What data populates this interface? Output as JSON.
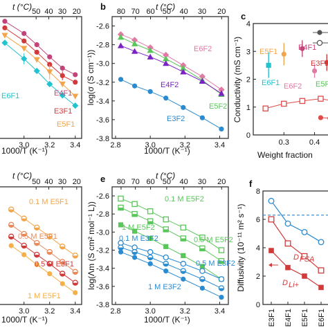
{
  "panel_letters": [
    "b",
    "c",
    "e",
    "f"
  ],
  "chart_data": [
    {
      "id": "a",
      "type": "scatter",
      "xlabel": "1000/T (K⁻¹)",
      "top_label": "t (°C)",
      "x_ticks": [
        "3.0",
        "3.2",
        "3.4"
      ],
      "top_ticks": [
        "50",
        "40",
        "30",
        "20"
      ],
      "series": [
        {
          "name": "E4F1",
          "color": "#c2457a",
          "marker": "circle",
          "x": [
            2.85,
            3.0,
            3.1,
            3.2,
            3.3,
            3.4
          ],
          "y": [
            -2.55,
            -2.68,
            -2.8,
            -2.93,
            -3.05,
            -3.12
          ]
        },
        {
          "name": "E3F1",
          "color": "#d13a3a",
          "marker": "circle",
          "x": [
            2.85,
            3.0,
            3.1,
            3.2,
            3.3,
            3.4
          ],
          "y": [
            -2.62,
            -2.76,
            -2.88,
            -3.01,
            -3.13,
            -3.2
          ]
        },
        {
          "name": "E5F1",
          "color": "#f2a54a",
          "marker": "triangle-down",
          "x": [
            2.85,
            3.0,
            3.1,
            3.2,
            3.3,
            3.4
          ],
          "y": [
            -2.7,
            -2.84,
            -2.96,
            -3.09,
            -3.22,
            -3.35
          ]
        },
        {
          "name": "E6F1",
          "color": "#21c3cf",
          "marker": "diamond",
          "x": [
            2.85,
            3.0,
            3.1,
            3.2,
            3.3,
            3.4
          ],
          "y": [
            -2.78,
            -2.95,
            -3.08,
            -3.22,
            -3.34,
            -3.45
          ]
        }
      ]
    },
    {
      "id": "b",
      "type": "line",
      "xlabel": "1000/T (K⁻¹)",
      "ylabel": "log(σ (S cm⁻¹))",
      "top_label": "t (°C)",
      "xlim": [
        2.78,
        3.45
      ],
      "ylim": [
        -3.8,
        -2.5
      ],
      "x_ticks": [
        "2.8",
        "3.0",
        "3.2",
        "3.4"
      ],
      "y_ticks": [
        "-2.6",
        "-2.8",
        "-3.0",
        "-3.2",
        "-3.4",
        "-3.6",
        "-3.8"
      ],
      "top_ticks": [
        "80",
        "70",
        "60",
        "50",
        "40",
        "30",
        "20"
      ],
      "series": [
        {
          "name": "E6F2",
          "color": "#e07aa5",
          "marker": "diamond",
          "x": [
            2.83,
            2.91,
            3.0,
            3.09,
            3.19,
            3.3,
            3.41
          ],
          "y": [
            -2.69,
            -2.75,
            -2.83,
            -2.91,
            -3.02,
            -3.14,
            -3.28
          ]
        },
        {
          "name": "E5F2",
          "color": "#59c659",
          "marker": "triangle",
          "x": [
            2.83,
            2.91,
            3.0,
            3.09,
            3.19,
            3.3,
            3.41
          ],
          "y": [
            -2.72,
            -2.79,
            -2.86,
            -2.95,
            -3.05,
            -3.18,
            -3.33
          ]
        },
        {
          "name": "E4F2",
          "color": "#7a22c2",
          "marker": "triangle",
          "x": [
            2.83,
            2.91,
            3.0,
            3.09,
            3.19,
            3.3,
            3.41
          ],
          "y": [
            -2.81,
            -2.87,
            -2.93,
            -3.0,
            -3.09,
            -3.19,
            -3.32
          ]
        },
        {
          "name": "E3F2",
          "color": "#2a8bd1",
          "marker": "circle",
          "x": [
            2.83,
            2.91,
            3.0,
            3.09,
            3.19,
            3.3,
            3.41
          ],
          "y": [
            -3.17,
            -3.24,
            -3.3,
            -3.37,
            -3.47,
            -3.58,
            -3.7
          ]
        }
      ]
    },
    {
      "id": "c",
      "type": "scatter",
      "xlabel": "Weight fraction",
      "ylabel": "Conductivity (mS cm⁻¹)",
      "xlim": [
        0.2,
        0.48
      ],
      "ylim": [
        0,
        4
      ],
      "x_ticks": [
        "0.3",
        "0.4"
      ],
      "y_ticks": [
        "0",
        "1",
        "2",
        "3",
        "4"
      ],
      "series": [
        {
          "name": "E5F1",
          "color": "#f2a54a",
          "marker": "circle",
          "x": [
            0.3
          ],
          "y": [
            2.9
          ],
          "err": [
            0.4
          ]
        },
        {
          "name": "E6F1",
          "color": "#21c3cf",
          "marker": "square",
          "x": [
            0.25
          ],
          "y": [
            2.5
          ],
          "err": [
            0.45
          ]
        },
        {
          "name": "E4F1",
          "color": "#c2457a",
          "marker": "circle",
          "x": [
            0.36
          ],
          "y": [
            3.1
          ],
          "err": [
            0.3
          ]
        },
        {
          "name": "E6F2",
          "color": "#e07aa5",
          "marker": "circle",
          "x": [
            0.4
          ],
          "y": [
            2.3
          ],
          "err": [
            0.25
          ]
        },
        {
          "name": "E3F1",
          "color": "#d13a3a",
          "marker": "circle",
          "x": [
            0.44
          ],
          "y": [
            2.6
          ],
          "err": [
            0.3
          ]
        },
        {
          "name": "E5F2",
          "color": "#59c659",
          "marker": "circle",
          "x": [
            0.47
          ],
          "y": [
            2.4
          ],
          "err": [
            0.2
          ]
        },
        {
          "name": "upper-open",
          "color": "#e04a4a",
          "marker": "open-square",
          "x": [
            0.24,
            0.3,
            0.36,
            0.42,
            0.47
          ],
          "y": [
            0.95,
            1.12,
            1.22,
            1.3,
            1.2
          ]
        },
        {
          "name": "lower-filled",
          "color": "#e04a4a",
          "marker": "circle",
          "x": [
            0.42,
            0.45,
            0.48
          ],
          "y": [
            0.62,
            0.6,
            0.58
          ]
        }
      ]
    },
    {
      "id": "d",
      "type": "scatter",
      "xlabel": "1000/T (K⁻¹)",
      "top_label": "t (°C)",
      "x_ticks": [
        "3.0",
        "3.2",
        "3.4"
      ],
      "top_ticks": [
        "50",
        "40",
        "30",
        "20"
      ],
      "series": [
        {
          "name": "0.1 M E5F1",
          "color": "#f2a54a",
          "marker": "half",
          "x": [
            2.9,
            3.0,
            3.1,
            3.2,
            3.3,
            3.4
          ],
          "y": [
            -2.75,
            -2.85,
            -2.95,
            -3.05,
            -3.16,
            -3.26
          ]
        },
        {
          "name": "0.5 M E5F1",
          "color": "#e88a5a",
          "marker": "half",
          "x": [
            2.9,
            3.0,
            3.1,
            3.2,
            3.3,
            3.4
          ],
          "y": [
            -2.92,
            -3.02,
            -3.12,
            -3.22,
            -3.33,
            -3.44
          ]
        },
        {
          "name": "0.5 M E3F1",
          "color": "#d13a3a",
          "marker": "half",
          "x": [
            2.9,
            3.0,
            3.1,
            3.2,
            3.3,
            3.4
          ],
          "y": [
            -3.05,
            -3.15,
            -3.25,
            -3.35,
            -3.46,
            -3.56
          ]
        },
        {
          "name": "1 M E5F1",
          "color": "#f5b04a",
          "marker": "circle",
          "x": [
            2.9,
            3.0,
            3.1,
            3.2,
            3.3,
            3.4
          ],
          "y": [
            -3.15,
            -3.25,
            -3.36,
            -3.46,
            -3.57,
            -3.67
          ]
        }
      ]
    },
    {
      "id": "e",
      "type": "line",
      "xlabel": "1000/T (K⁻¹)",
      "ylabel": "log(Λ_m (S cm² mol⁻¹ L))",
      "top_label": "t (°C)",
      "xlim": [
        2.78,
        3.45
      ],
      "ylim": [
        -3.8,
        -2.5
      ],
      "x_ticks": [
        "2.8",
        "3.0",
        "3.2",
        "3.4"
      ],
      "y_ticks": [
        "-2.6",
        "-2.8",
        "-3.0",
        "-3.2",
        "-3.4",
        "-3.6",
        "-3.8"
      ],
      "top_ticks": [
        "80",
        "70",
        "60",
        "50",
        "40",
        "30",
        "20"
      ],
      "series": [
        {
          "name": "0.1 M E5F2",
          "color": "#59c659",
          "marker": "open-square",
          "x": [
            2.83,
            2.91,
            3.0,
            3.09,
            3.19,
            3.3,
            3.41
          ],
          "y": [
            -2.63,
            -2.69,
            -2.77,
            -2.86,
            -2.95,
            -3.06,
            -3.2
          ]
        },
        {
          "name": "0.5 M E5F2",
          "color": "#59c659",
          "marker": "half-square",
          "x": [
            2.83,
            2.91,
            3.0,
            3.09,
            3.19,
            3.3,
            3.41
          ],
          "y": [
            -2.73,
            -2.8,
            -2.88,
            -2.97,
            -3.07,
            -3.18,
            -3.32
          ]
        },
        {
          "name": "1 M E5F2",
          "color": "#59c659",
          "marker": "square",
          "x": [
            2.83,
            2.91,
            3.0,
            3.09,
            3.19,
            3.3,
            3.41
          ],
          "y": [
            -2.92,
            -2.99,
            -3.07,
            -3.16,
            -3.26,
            -3.38,
            -3.52
          ]
        },
        {
          "name": "0.1 M E3F2",
          "color": "#2a8bd1",
          "marker": "open-circle",
          "x": [
            2.83,
            2.91,
            3.0,
            3.09,
            3.19,
            3.3,
            3.41
          ],
          "y": [
            -3.12,
            -3.17,
            -3.22,
            -3.28,
            -3.35,
            -3.43,
            -3.52
          ]
        },
        {
          "name": "0.5 M E3F2",
          "color": "#2a8bd1",
          "marker": "half",
          "x": [
            2.83,
            2.91,
            3.0,
            3.09,
            3.19,
            3.3,
            3.41
          ],
          "y": [
            -3.17,
            -3.22,
            -3.28,
            -3.35,
            -3.43,
            -3.52,
            -3.62
          ]
        },
        {
          "name": "1 M E3F2",
          "color": "#2a8bd1",
          "marker": "circle",
          "x": [
            2.83,
            2.91,
            3.0,
            3.09,
            3.19,
            3.3,
            3.41
          ],
          "y": [
            -3.22,
            -3.28,
            -3.35,
            -3.43,
            -3.52,
            -3.62,
            -3.72
          ]
        }
      ]
    },
    {
      "id": "f",
      "type": "line",
      "ylabel": "Diffusivity (10⁻¹¹ m² s⁻¹)",
      "categories": [
        "E3F1",
        "E4F1",
        "E5F1",
        "E6F1"
      ],
      "ylim": [
        0,
        8
      ],
      "y_ticks": [
        "0",
        "2",
        "4",
        "6",
        "8"
      ],
      "reference_line": 6.3,
      "series": [
        {
          "name": "",
          "color": "#2a8bd1",
          "marker": "open-circle",
          "values": [
            7.3,
            5.7,
            5.1,
            4.4
          ]
        },
        {
          "name": "D_FSA",
          "color": "#d13a3a",
          "marker": "open-square",
          "values": [
            6.0,
            4.3,
            3.4,
            2.4
          ]
        },
        {
          "name": "D_Li+",
          "color": "#d13a3a",
          "marker": "square",
          "values": [
            3.8,
            2.6,
            2.0,
            1.2
          ]
        }
      ]
    }
  ]
}
